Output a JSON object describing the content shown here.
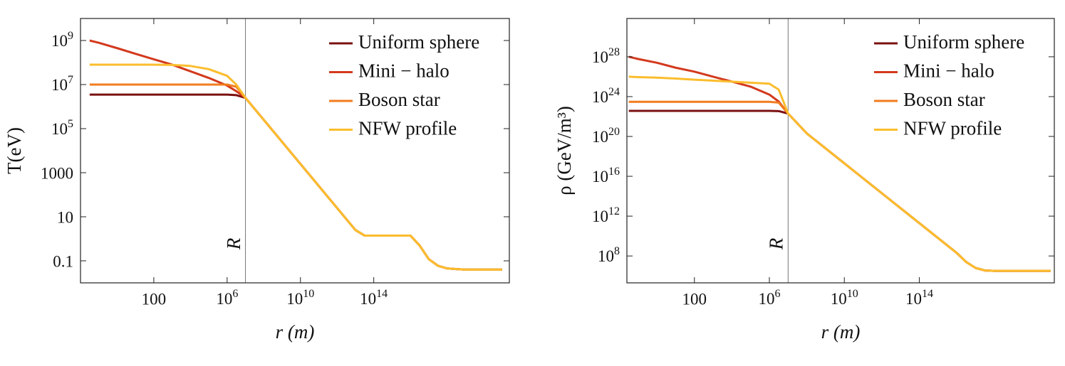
{
  "chart_data": [
    {
      "type": "line",
      "x_label": "r (m)",
      "y_label": "T(eV)",
      "xlog": true,
      "ylog": true,
      "legend": "top-right",
      "xlim": [
        0.01,
        2.5e+21
      ],
      "ylim": [
        0.01,
        10000000000.0
      ],
      "xticks": [
        100,
        {
          "value": 1000000.0,
          "label": "10",
          "exponent": "6"
        },
        {
          "value": 10000000000.0,
          "label": "10",
          "exponent": "10"
        },
        {
          "value": 100000000000000.0,
          "label": "10",
          "exponent": "14"
        }
      ],
      "yticks": [
        0.1,
        10,
        1000,
        {
          "value": 100000.0,
          "label": "10",
          "exponent": "5"
        },
        {
          "value": 10000000.0,
          "label": "10",
          "exponent": "7"
        },
        {
          "value": 1000000000.0,
          "label": "10",
          "exponent": "9"
        }
      ],
      "vline": {
        "x": 10000000.0,
        "label": "R"
      },
      "x": [
        0.0316,
        0.1,
        1,
        10,
        100,
        1000,
        10000.0,
        100000.0,
        1000000.0,
        3160000.0,
        10000000.0,
        100000000.0,
        1000000000.0,
        10000000000.0,
        100000000000.0,
        1000000000000.0,
        10000000000000.0,
        31600000000000.0,
        100000000000000.0,
        1000000000000000.0,
        1e+16,
        3.16e+16,
        1e+17,
        3.16e+17,
        1e+18,
        1e+19,
        1e+20,
        1e+21
      ],
      "series": [
        {
          "name": "Uniform sphere",
          "color": "#7a1010",
          "values": [
            3500000.0,
            3500000.0,
            3500000.0,
            3500000.0,
            3500000.0,
            3500000.0,
            3500000.0,
            3500000.0,
            3500000.0,
            3300000.0,
            2500000.0,
            250000.0,
            25000.0,
            2500,
            250,
            25,
            2.5,
            1.4,
            1.4,
            1.4,
            1.4,
            0.5,
            0.12,
            0.06,
            0.045,
            0.04,
            0.04,
            0.04
          ]
        },
        {
          "name": "Mini − halo",
          "color": "#d3391d",
          "values": [
            1000000000.0,
            790000000.0,
            450000000.0,
            250000000.0,
            140000000.0,
            80000000.0,
            40000000.0,
            20000000.0,
            9000000.0,
            5000000.0,
            2500000.0,
            250000.0,
            25000.0,
            2500,
            250,
            25,
            2.5,
            1.4,
            1.4,
            1.4,
            1.4,
            0.5,
            0.12,
            0.06,
            0.045,
            0.04,
            0.04,
            0.04
          ]
        },
        {
          "name": "Boson star",
          "color": "#f27c1f",
          "values": [
            10000000.0,
            10000000.0,
            10000000.0,
            10000000.0,
            10000000.0,
            10000000.0,
            10000000.0,
            10000000.0,
            10000000.0,
            8000000.0,
            2500000.0,
            250000.0,
            25000.0,
            2500,
            250,
            25,
            2.5,
            1.4,
            1.4,
            1.4,
            1.4,
            0.5,
            0.12,
            0.06,
            0.045,
            0.04,
            0.04,
            0.04
          ]
        },
        {
          "name": "NFW profile",
          "color": "#fbbd2d",
          "values": [
            80000000.0,
            80000000.0,
            80000000.0,
            80000000.0,
            80000000.0,
            78000000.0,
            70000000.0,
            50000000.0,
            25000000.0,
            10000000.0,
            2500000.0,
            250000.0,
            25000.0,
            2500,
            250,
            25,
            2.5,
            1.4,
            1.4,
            1.4,
            1.4,
            0.5,
            0.12,
            0.06,
            0.045,
            0.04,
            0.04,
            0.04
          ]
        }
      ]
    },
    {
      "type": "line",
      "x_label": "r (m)",
      "y_label": "ρ (GeV/m³)",
      "xlog": true,
      "ylog": true,
      "legend": "top-right",
      "xlim": [
        0.025,
        1.6e+21
      ],
      "ylim": [
        200000.0,
        7e+31
      ],
      "xticks": [
        100,
        {
          "value": 1000000.0,
          "label": "10",
          "exponent": "6"
        },
        {
          "value": 10000000000.0,
          "label": "10",
          "exponent": "10"
        },
        {
          "value": 100000000000000.0,
          "label": "10",
          "exponent": "14"
        }
      ],
      "yticks": [
        {
          "value": 100000000.0,
          "label": "10",
          "exponent": "8"
        },
        {
          "value": 1000000000000.0,
          "label": "10",
          "exponent": "12"
        },
        {
          "value": 1e+16,
          "label": "10",
          "exponent": "16"
        },
        {
          "value": 1e+20,
          "label": "10",
          "exponent": "20"
        },
        {
          "value": 1e+24,
          "label": "10",
          "exponent": "24"
        },
        {
          "value": 1e+28,
          "label": "10",
          "exponent": "28"
        }
      ],
      "vline": {
        "x": 10000000.0,
        "label": "R"
      },
      "x": [
        0.0316,
        0.1,
        1,
        10,
        100,
        1000,
        10000.0,
        100000.0,
        1000000.0,
        3160000.0,
        10000000.0,
        31600000.0,
        100000000.0,
        1000000000.0,
        10000000000.0,
        100000000000.0,
        1000000000000.0,
        10000000000000.0,
        100000000000000.0,
        1000000000000000.0,
        1e+16,
        3.16e+16,
        1e+17,
        3.16e+17,
        1e+18,
        1e+19,
        1e+20,
        1e+21
      ],
      "series": [
        {
          "name": "Uniform sphere",
          "color": "#7a1010",
          "values": [
            3.7e+22,
            3.7e+22,
            3.7e+22,
            3.7e+22,
            3.7e+22,
            3.7e+22,
            3.7e+22,
            3.7e+22,
            3.7e+22,
            3.5e+22,
            2e+22,
            2e+21,
            2e+20,
            6.3e+18,
            2e+17,
            6300000000000000.0,
            200000000000000.0,
            6300000000000.0,
            200000000000.0,
            6300000000.0,
            200000000.0,
            25000000.0,
            6300000.0,
            3500000.0,
            3200000.0,
            3200000.0,
            3200000.0,
            3200000.0
          ]
        },
        {
          "name": "Mini − halo",
          "color": "#d3391d",
          "values": [
            1e+28,
            6e+27,
            2.5e+27,
            8e+26,
            3.2e+26,
            1e+26,
            3.2e+25,
            1e+25,
            1.6e+24,
            3.2e+23,
            2e+22,
            2e+21,
            2e+20,
            6.3e+18,
            2e+17,
            6300000000000000.0,
            200000000000000.0,
            6300000000000.0,
            200000000000.0,
            6300000000.0,
            200000000.0,
            25000000.0,
            6300000.0,
            3500000.0,
            3200000.0,
            3200000.0,
            3200000.0,
            3200000.0
          ]
        },
        {
          "name": "Boson star",
          "color": "#f27c1f",
          "values": [
            3e+23,
            3e+23,
            3e+23,
            3e+23,
            3e+23,
            3e+23,
            3e+23,
            3e+23,
            3e+23,
            2.5e+23,
            2e+22,
            2e+21,
            2e+20,
            6.3e+18,
            2e+17,
            6300000000000000.0,
            200000000000000.0,
            6300000000000.0,
            200000000000.0,
            6300000000.0,
            200000000.0,
            25000000.0,
            6300000.0,
            3500000.0,
            3200000.0,
            3200000.0,
            3200000.0,
            3200000.0
          ]
        },
        {
          "name": "NFW profile",
          "color": "#fbbd2d",
          "values": [
            1e+26,
            9e+25,
            8e+25,
            6.5e+25,
            5e+25,
            4e+25,
            3.2e+25,
            2.5e+25,
            2e+25,
            5e+24,
            2e+22,
            2e+21,
            2e+20,
            6.3e+18,
            2e+17,
            6300000000000000.0,
            200000000000000.0,
            6300000000000.0,
            200000000000.0,
            6300000000.0,
            200000000.0,
            25000000.0,
            6300000.0,
            3500000.0,
            3200000.0,
            3200000.0,
            3200000.0,
            3200000.0
          ]
        }
      ]
    }
  ]
}
